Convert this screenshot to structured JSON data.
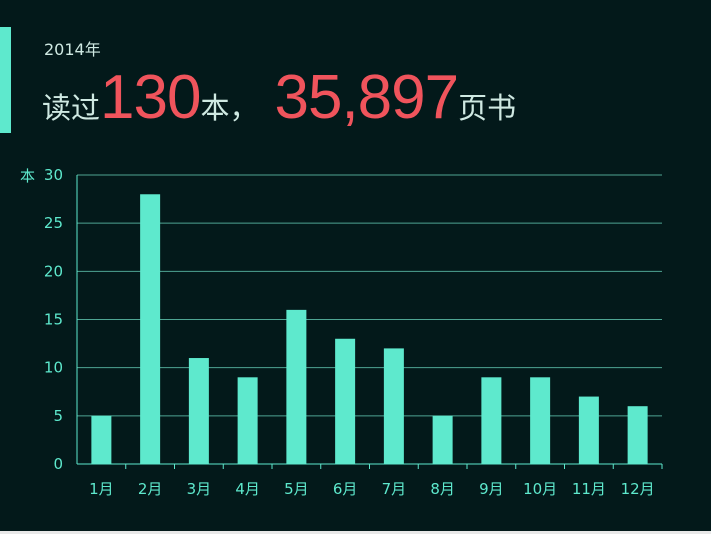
{
  "header": {
    "year": "2014年",
    "read_prefix": "读过",
    "book_count": "130",
    "book_unit": "本，",
    "page_count": "35,897",
    "page_unit": "页书"
  },
  "colors": {
    "background": "#03191a",
    "accent": "#5ee9cd",
    "highlight": "#f0545c",
    "text": "#cfe9e2"
  },
  "chart_data": {
    "type": "bar",
    "ylabel": "本",
    "ylim": [
      0,
      30
    ],
    "yticks": [
      0,
      5,
      10,
      15,
      20,
      25,
      30
    ],
    "grid": true,
    "categories": [
      "1月",
      "2月",
      "3月",
      "4月",
      "5月",
      "6月",
      "7月",
      "8月",
      "9月",
      "10月",
      "11月",
      "12月"
    ],
    "values": [
      5,
      28,
      11,
      9,
      16,
      13,
      12,
      5,
      9,
      9,
      7,
      6
    ]
  }
}
